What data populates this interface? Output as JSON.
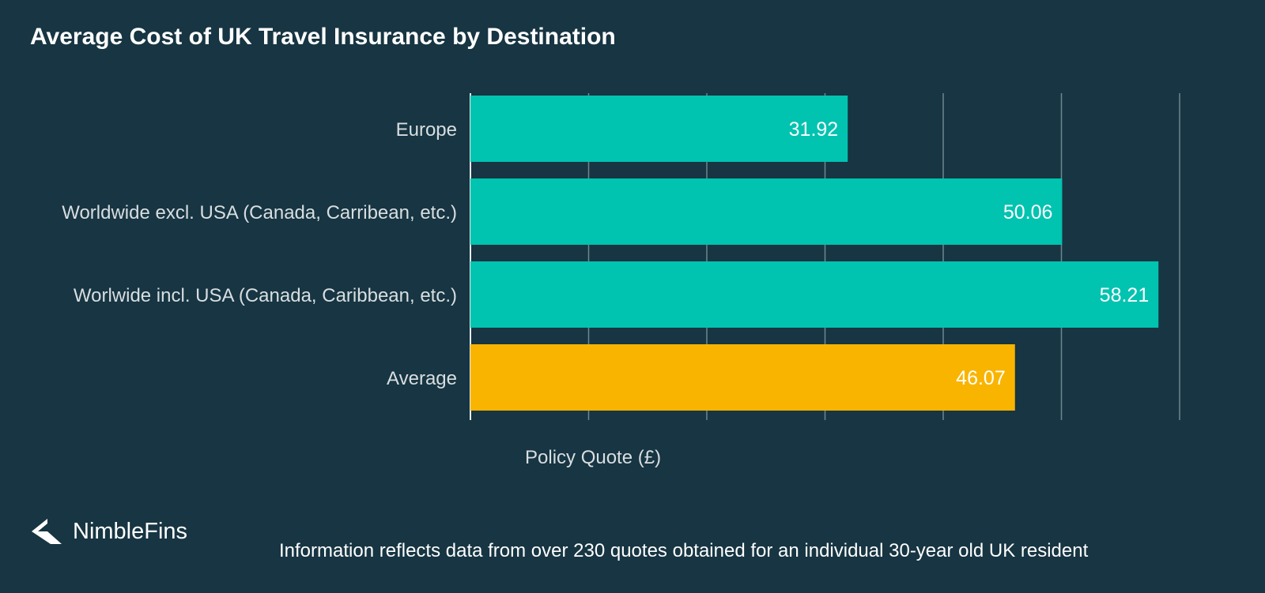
{
  "title": "Average Cost of UK Travel Insurance by Destination",
  "brand": "NimbleFins",
  "footnote": "Information reflects data from over 230 quotes obtained for an individual 30-year old UK resident",
  "colors": {
    "background": "#173542",
    "bar_primary": "#00C3B0",
    "bar_highlight": "#F9B400",
    "grid": "#6E8790",
    "label_text": "#D8DEE1",
    "value_text": "#FFFFFF"
  },
  "chart_data": {
    "type": "bar",
    "orientation": "horizontal",
    "categories": [
      "Europe",
      "Worldwide excl. USA (Canada, Carribean, etc.)",
      "Worlwide incl. USA (Canada, Caribbean, etc.)",
      "Average"
    ],
    "values": [
      31.92,
      50.06,
      58.21,
      46.07
    ],
    "value_labels": [
      "31.92",
      "50.06",
      "58.21",
      "46.07"
    ],
    "highlight": [
      false,
      false,
      false,
      true
    ],
    "xlabel": "Policy Quote (£)",
    "ylabel": "",
    "xlim": [
      0,
      60
    ],
    "grid": true,
    "gridline_values": [
      0,
      10,
      20,
      30,
      40,
      50,
      60
    ]
  }
}
